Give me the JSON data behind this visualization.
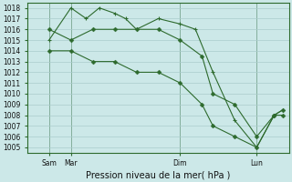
{
  "background_color": "#cce8e8",
  "grid_color": "#aacccc",
  "line_color": "#2d6a2d",
  "title": "Pression niveau de la mer( hPa )",
  "ylim": [
    1004.5,
    1018.5
  ],
  "yticks": [
    1005,
    1006,
    1007,
    1008,
    1009,
    1010,
    1011,
    1012,
    1013,
    1014,
    1015,
    1016,
    1017,
    1018
  ],
  "xlim": [
    -0.5,
    11.5
  ],
  "xtick_positions": [
    0.5,
    1.5,
    6.5,
    10.0
  ],
  "xtick_labels": [
    "Sam",
    "Mar",
    "Dim",
    "Lun"
  ],
  "vline_x": [
    0.5,
    1.5,
    6.5,
    10.0
  ],
  "line1_x": [
    0.5,
    1.5,
    2.2,
    2.8,
    3.5,
    4.0,
    4.5,
    5.5,
    6.5,
    7.2,
    8.0,
    9.0,
    10.0,
    10.8,
    11.2
  ],
  "line1_y": [
    1015,
    1018,
    1017,
    1018,
    1017.5,
    1017,
    1016,
    1017,
    1016.5,
    1016,
    1012,
    1007.5,
    1005,
    1008,
    1008.5
  ],
  "line2_x": [
    0.5,
    1.5,
    2.5,
    3.5,
    4.5,
    5.5,
    6.5,
    7.5,
    8.0,
    9.0,
    10.0,
    10.8,
    11.2
  ],
  "line2_y": [
    1016,
    1015,
    1016,
    1016,
    1016,
    1016,
    1015,
    1013.5,
    1010,
    1009,
    1006,
    1008,
    1008.5
  ],
  "line3_x": [
    0.5,
    1.5,
    2.5,
    3.5,
    4.5,
    5.5,
    6.5,
    7.5,
    8.0,
    9.0,
    10.0,
    10.8,
    11.2
  ],
  "line3_y": [
    1014,
    1014,
    1013,
    1013,
    1012,
    1012,
    1011,
    1009,
    1007,
    1006,
    1005,
    1008,
    1008
  ],
  "marker_size": 2.5
}
